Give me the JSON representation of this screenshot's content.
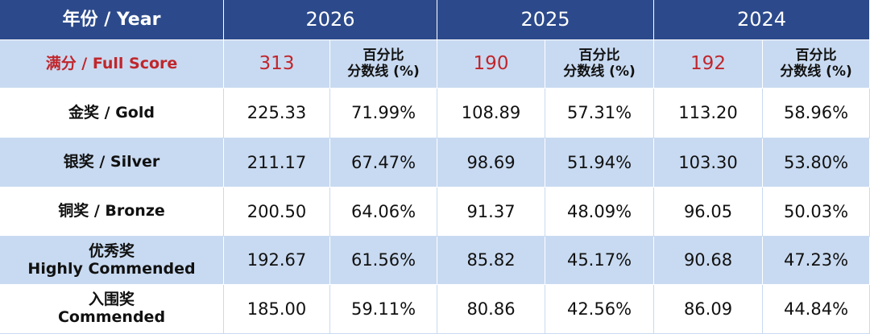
{
  "header": {
    "label": "年份 / Year",
    "years": [
      "2026",
      "2025",
      "2024"
    ]
  },
  "full_score": {
    "label": "满分 / Full Score",
    "groups": [
      {
        "score": "313",
        "pct_label": [
          "百分比",
          "分数线 (%)"
        ]
      },
      {
        "score": "190",
        "pct_label": [
          "百分比",
          "分数线 (%)"
        ]
      },
      {
        "score": "192",
        "pct_label": [
          "百分比",
          "分数线 (%)"
        ]
      }
    ]
  },
  "rows": [
    {
      "label": [
        "金奖 / Gold"
      ],
      "cells": [
        "225.33",
        "71.99%",
        "108.89",
        "57.31%",
        "113.20",
        "58.96%"
      ]
    },
    {
      "label": [
        "银奖 / Silver"
      ],
      "cells": [
        "211.17",
        "67.47%",
        "98.69",
        "51.94%",
        "103.30",
        "53.80%"
      ]
    },
    {
      "label": [
        "铜奖 / Bronze"
      ],
      "cells": [
        "200.50",
        "64.06%",
        "91.37",
        "48.09%",
        "96.05",
        "50.03%"
      ]
    },
    {
      "label": [
        "优秀奖",
        "Highly Commended"
      ],
      "cells": [
        "192.67",
        "61.56%",
        "85.82",
        "45.17%",
        "90.68",
        "47.23%"
      ]
    },
    {
      "label": [
        "入围奖",
        "Commended"
      ],
      "cells": [
        "185.00",
        "59.11%",
        "80.86",
        "42.56%",
        "86.09",
        "44.84%"
      ]
    }
  ]
}
